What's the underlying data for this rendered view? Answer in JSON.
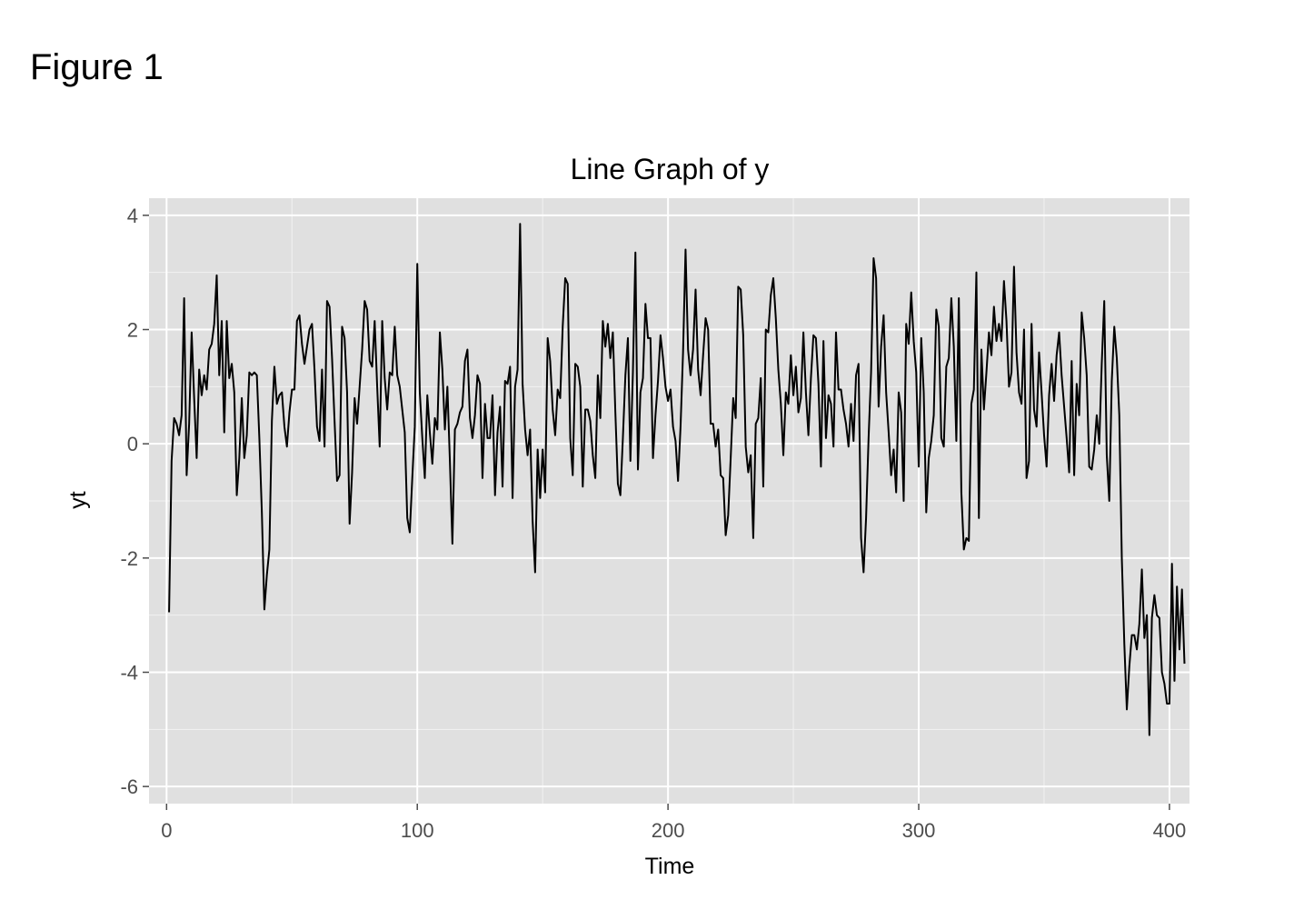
{
  "figure_label": "Figure 1",
  "chart_data": {
    "type": "line",
    "title": "Line Graph of y",
    "xlabel": "Time",
    "ylabel": "yt",
    "xlim": [
      -7,
      408
    ],
    "ylim": [
      -6.3,
      4.3
    ],
    "x_ticks": [
      0,
      100,
      200,
      300,
      400
    ],
    "x_tick_labels": [
      "0",
      "100",
      "200",
      "300",
      "400"
    ],
    "y_ticks": [
      -6,
      -4,
      -2,
      0,
      2,
      4
    ],
    "y_tick_labels": [
      "-6",
      "-4",
      "-2",
      "0",
      "2",
      "4"
    ],
    "grid": true,
    "background": "#e0e0e0",
    "line_color": "#000000",
    "legend": "none",
    "series": [
      {
        "x_start": 1,
        "x_step": 1,
        "values": [
          -2.95,
          -0.3,
          0.45,
          0.35,
          0.15,
          0.5,
          2.55,
          -0.55,
          0.35,
          1.95,
          0.8,
          -0.25,
          1.3,
          0.85,
          1.2,
          0.95,
          1.65,
          1.75,
          2.1,
          2.95,
          1.2,
          2.15,
          0.2,
          2.15,
          1.15,
          1.4,
          0.9,
          -0.9,
          -0.25,
          0.8,
          -0.25,
          0.15,
          1.25,
          1.2,
          1.25,
          1.2,
          0.1,
          -1.2,
          -2.9,
          -2.3,
          -1.85,
          0.4,
          1.35,
          0.7,
          0.85,
          0.9,
          0.3,
          -0.05,
          0.55,
          0.95,
          0.95,
          2.15,
          2.25,
          1.75,
          1.4,
          1.7,
          2.0,
          2.1,
          1.3,
          0.3,
          0.05,
          1.3,
          -0.05,
          2.5,
          2.4,
          1.5,
          0.4,
          -0.65,
          -0.55,
          2.05,
          1.85,
          0.9,
          -1.4,
          -0.5,
          0.8,
          0.35,
          1.0,
          1.65,
          2.5,
          2.35,
          1.45,
          1.35,
          2.15,
          1.0,
          -0.05,
          2.15,
          1.15,
          0.6,
          1.25,
          1.2,
          2.05,
          1.2,
          1.0,
          0.6,
          0.2,
          -1.3,
          -1.55,
          -0.6,
          0.3,
          3.15,
          0.9,
          0.1,
          -0.6,
          0.85,
          0.2,
          -0.35,
          0.45,
          0.25,
          1.95,
          1.3,
          0.25,
          1.0,
          -0.3,
          -1.75,
          0.25,
          0.35,
          0.55,
          0.65,
          1.45,
          1.65,
          0.45,
          0.1,
          0.5,
          1.2,
          1.05,
          -0.6,
          0.7,
          0.1,
          0.1,
          0.85,
          -0.9,
          0.2,
          0.65,
          -0.75,
          1.1,
          1.05,
          1.35,
          -0.95,
          1.0,
          1.3,
          3.85,
          1.05,
          0.25,
          -0.2,
          0.25,
          -1.35,
          -2.25,
          -0.1,
          -0.95,
          -0.1,
          -0.85,
          1.85,
          1.45,
          0.6,
          0.15,
          0.95,
          0.8,
          2.05,
          2.9,
          2.8,
          0.1,
          -0.55,
          1.4,
          1.35,
          1.0,
          -0.75,
          0.6,
          0.6,
          0.4,
          -0.2,
          -0.6,
          1.2,
          0.45,
          2.15,
          1.7,
          2.1,
          1.5,
          1.95,
          0.55,
          -0.7,
          -0.9,
          0.1,
          1.2,
          1.85,
          -0.3,
          1.25,
          3.35,
          -0.45,
          0.9,
          1.15,
          2.45,
          1.85,
          1.85,
          -0.25,
          0.5,
          1.1,
          1.9,
          1.5,
          1.0,
          0.75,
          0.95,
          0.3,
          0.05,
          -0.65,
          0.3,
          1.6,
          3.4,
          1.65,
          1.2,
          1.65,
          2.7,
          1.3,
          0.85,
          1.55,
          2.2,
          2.0,
          0.35,
          0.35,
          -0.05,
          0.25,
          -0.55,
          -0.6,
          -1.6,
          -1.25,
          -0.25,
          0.8,
          0.45,
          2.75,
          2.7,
          1.9,
          -0.05,
          -0.5,
          -0.2,
          -1.65,
          0.35,
          0.45,
          1.15,
          -0.75,
          2.0,
          1.95,
          2.6,
          2.9,
          2.2,
          1.3,
          0.7,
          -0.2,
          0.9,
          0.7,
          1.55,
          0.85,
          1.35,
          0.55,
          0.8,
          1.95,
          0.9,
          0.15,
          1.15,
          1.9,
          1.85,
          1.05,
          -0.4,
          1.8,
          0.1,
          0.85,
          0.7,
          -0.05,
          1.95,
          0.95,
          0.95,
          0.6,
          0.35,
          -0.05,
          0.7,
          0.05,
          1.2,
          1.4,
          -1.65,
          -2.25,
          -1.3,
          0.1,
          1.25,
          3.25,
          2.9,
          0.65,
          1.7,
          2.25,
          0.9,
          0.2,
          -0.55,
          -0.1,
          -0.85,
          0.9,
          0.55,
          -1.0,
          2.1,
          1.75,
          2.65,
          1.8,
          1.25,
          -0.4,
          1.85,
          0.9,
          -1.2,
          -0.25,
          0.05,
          0.5,
          2.35,
          2.05,
          0.1,
          -0.05,
          1.35,
          1.5,
          2.55,
          1.7,
          0.05,
          2.55,
          -0.85,
          -1.85,
          -1.65,
          -1.7,
          0.7,
          0.95,
          3.0,
          -1.3,
          1.65,
          0.6,
          1.25,
          1.95,
          1.55,
          2.4,
          1.8,
          2.1,
          1.8,
          2.85,
          2.15,
          1.0,
          1.25,
          3.1,
          1.6,
          0.9,
          0.7,
          2.0,
          -0.6,
          -0.3,
          2.1,
          0.6,
          0.3,
          1.6,
          0.9,
          0.15,
          -0.4,
          0.85,
          1.4,
          0.75,
          1.55,
          1.95,
          1.2,
          0.65,
          0.1,
          -0.5,
          1.45,
          -0.55,
          1.05,
          0.5,
          2.3,
          1.85,
          1.2,
          -0.4,
          -0.45,
          -0.1,
          0.5,
          0.0,
          1.4,
          2.5,
          -0.2,
          -1.0,
          1.1,
          2.05,
          1.5,
          0.5,
          -2.0,
          -3.5,
          -4.65,
          -3.9,
          -3.35,
          -3.35,
          -3.6,
          -3.15,
          -2.2,
          -3.4,
          -3.0,
          -5.1,
          -3.05,
          -2.65,
          -3.0,
          -3.05,
          -4.0,
          -4.2,
          -4.55,
          -4.55,
          -2.1,
          -4.15,
          -2.5,
          -3.6,
          -2.55,
          -3.85
        ]
      }
    ]
  }
}
